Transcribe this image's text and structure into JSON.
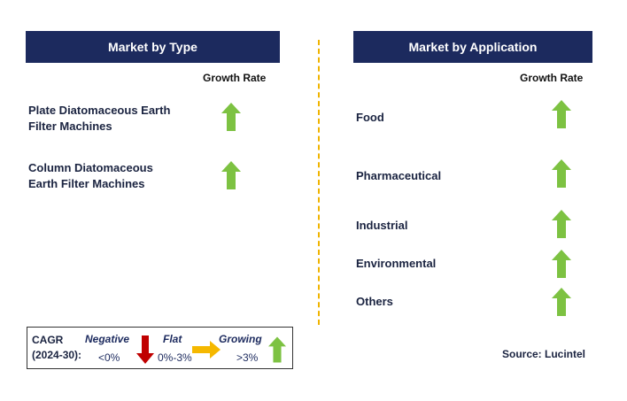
{
  "left_panel": {
    "title": "Market by Type",
    "growth_rate_label": "Growth Rate",
    "items": [
      {
        "line1": "Plate Diatomaceous Earth",
        "line2": "Filter Machines",
        "trend": "growing"
      },
      {
        "line1": "Column Diatomaceous",
        "line2": "Earth Filter Machines",
        "trend": "growing"
      }
    ]
  },
  "right_panel": {
    "title": "Market by Application",
    "growth_rate_label": "Growth Rate",
    "items": [
      {
        "label": "Food",
        "trend": "growing"
      },
      {
        "label": "Pharmaceutical",
        "trend": "growing"
      },
      {
        "label": "Industrial",
        "trend": "growing"
      },
      {
        "label": "Environmental",
        "trend": "growing"
      },
      {
        "label": "Others",
        "trend": "growing"
      }
    ]
  },
  "legend": {
    "cagr_line1": "CAGR",
    "cagr_line2": "(2024-30):",
    "negative_label": "Negative",
    "negative_value": "<0%",
    "flat_label": "Flat",
    "flat_value": "0%-3%",
    "growing_label": "Growing",
    "growing_value": ">3%"
  },
  "source": "Source: Lucintel",
  "colors": {
    "header_bg": "#1c2a5e",
    "growing_arrow": "#7dc242",
    "negative_arrow": "#c00000",
    "flat_arrow": "#f5b800",
    "divider": "#f0b400"
  }
}
